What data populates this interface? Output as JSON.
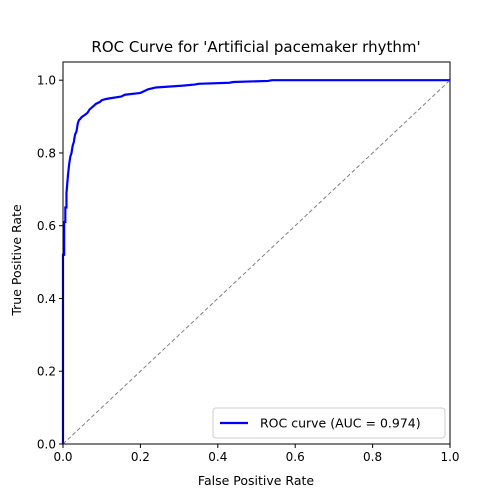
{
  "chart_data": {
    "type": "line",
    "title": "ROC Curve for 'Artificial pacemaker rhythm'",
    "xlabel": "False Positive Rate",
    "ylabel": "True Positive Rate",
    "xlim": [
      0.0,
      1.0
    ],
    "ylim": [
      0.0,
      1.05
    ],
    "xticks": [
      "0.0",
      "0.2",
      "0.4",
      "0.6",
      "0.8",
      "1.0"
    ],
    "yticks": [
      "0.0",
      "0.2",
      "0.4",
      "0.6",
      "0.8",
      "1.0"
    ],
    "grid": false,
    "legend_position": "lower-right",
    "series": [
      {
        "name": "ROC curve (AUC = 0.974)",
        "color": "#0000ff",
        "style": "solid",
        "x": [
          0.0,
          0.0,
          0.003,
          0.003,
          0.006,
          0.006,
          0.009,
          0.009,
          0.013,
          0.016,
          0.019,
          0.022,
          0.025,
          0.028,
          0.031,
          0.035,
          0.038,
          0.041,
          0.044,
          0.047,
          0.05,
          0.057,
          0.063,
          0.069,
          0.08,
          0.085,
          0.095,
          0.1,
          0.11,
          0.12,
          0.15,
          0.16,
          0.2,
          0.22,
          0.24,
          0.31,
          0.34,
          0.35,
          0.43,
          0.44,
          0.53,
          0.54,
          1.0
        ],
        "y": [
          0.0,
          0.52,
          0.52,
          0.61,
          0.61,
          0.65,
          0.65,
          0.69,
          0.74,
          0.77,
          0.79,
          0.8,
          0.82,
          0.83,
          0.85,
          0.86,
          0.88,
          0.89,
          0.893,
          0.897,
          0.9,
          0.905,
          0.91,
          0.92,
          0.93,
          0.935,
          0.94,
          0.945,
          0.948,
          0.95,
          0.955,
          0.96,
          0.965,
          0.975,
          0.98,
          0.985,
          0.988,
          0.99,
          0.993,
          0.995,
          0.998,
          1.0,
          1.0
        ]
      },
      {
        "name": "",
        "color": "#808080",
        "style": "dashed",
        "x": [
          0.0,
          1.0
        ],
        "y": [
          0.0,
          1.0
        ]
      }
    ]
  }
}
